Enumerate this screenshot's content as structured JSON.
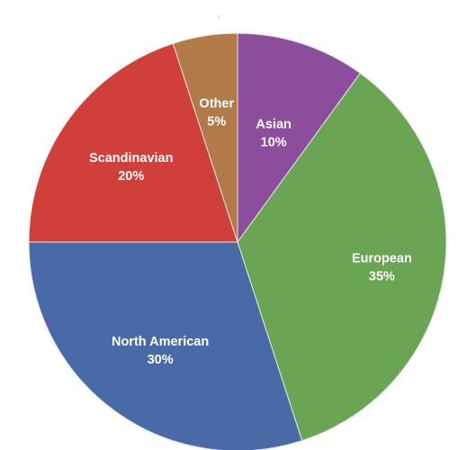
{
  "chart_data": {
    "type": "pie",
    "slices": [
      {
        "label": "Asian",
        "value": 10,
        "percent_label": "10%",
        "color": "#8c4e9c"
      },
      {
        "label": "European",
        "value": 35,
        "percent_label": "35%",
        "color": "#6aa553"
      },
      {
        "label": "North American",
        "value": 30,
        "percent_label": "30%",
        "color": "#4a6aa7"
      },
      {
        "label": "Scandinavian",
        "value": 20,
        "percent_label": "20%",
        "color": "#d13f3b"
      },
      {
        "label": "Other",
        "value": 5,
        "percent_label": "5%",
        "color": "#b27a47"
      }
    ],
    "start_angle_deg": 0,
    "direction": "clockwise"
  },
  "top_mark": "ꜝ"
}
